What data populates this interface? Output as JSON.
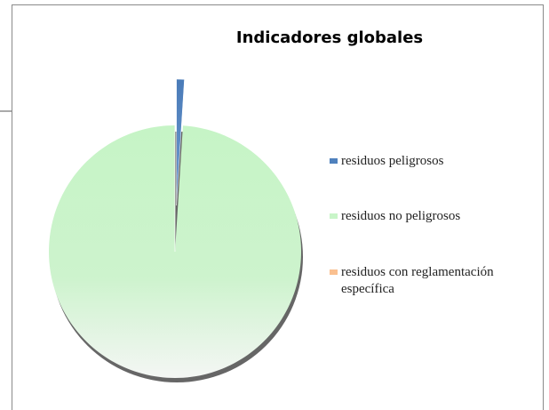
{
  "chart_data": {
    "type": "pie",
    "title": "Indicadores globales",
    "categories": [
      "residuos peligrosos",
      "residuos no peligrosos",
      "residuos con reglamentación específica"
    ],
    "values": [
      1,
      99,
      0
    ],
    "colors": [
      "#4f81bd",
      "#c8f5c8",
      "#fac090"
    ],
    "exploded": [
      true,
      false,
      false
    ]
  }
}
